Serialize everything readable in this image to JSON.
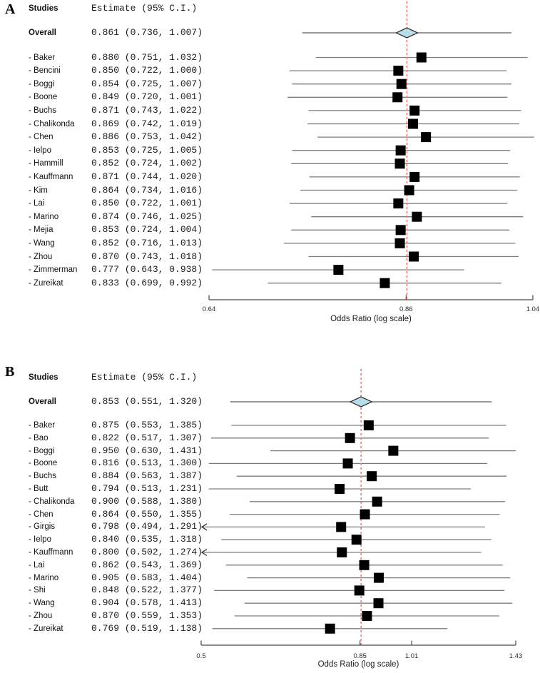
{
  "page": {
    "background": "#ffffff"
  },
  "chart_data": [
    {
      "type": "forest",
      "panel_label": "A",
      "columns": {
        "studies": "Studies",
        "estimate": "Estimate (95% C.I.)"
      },
      "xlabel": "Odds Ratio (log scale)",
      "scale": "log",
      "x_range": [
        0.64,
        1.04
      ],
      "x_tick_labels": [
        "0.64",
        "0.86",
        "1.04"
      ],
      "reference_line": 0.861,
      "overall": {
        "label": "Overall",
        "est": 0.861,
        "lo": 0.736,
        "hi": 1.007
      },
      "studies": [
        {
          "label": "- Baker",
          "est": 0.88,
          "lo": 0.751,
          "hi": 1.032
        },
        {
          "label": "- Bencini",
          "est": 0.85,
          "lo": 0.722,
          "hi": 1.0
        },
        {
          "label": "- Boggi",
          "est": 0.854,
          "lo": 0.725,
          "hi": 1.007
        },
        {
          "label": "- Boone",
          "est": 0.849,
          "lo": 0.72,
          "hi": 1.001
        },
        {
          "label": "- Buchs",
          "est": 0.871,
          "lo": 0.743,
          "hi": 1.022
        },
        {
          "label": "- Chalikonda",
          "est": 0.869,
          "lo": 0.742,
          "hi": 1.019
        },
        {
          "label": "- Chen",
          "est": 0.886,
          "lo": 0.753,
          "hi": 1.042
        },
        {
          "label": "- Ielpo",
          "est": 0.853,
          "lo": 0.725,
          "hi": 1.005
        },
        {
          "label": "- Hammill",
          "est": 0.852,
          "lo": 0.724,
          "hi": 1.002
        },
        {
          "label": "- Kauffmann",
          "est": 0.871,
          "lo": 0.744,
          "hi": 1.02
        },
        {
          "label": "- Kim",
          "est": 0.864,
          "lo": 0.734,
          "hi": 1.016
        },
        {
          "label": "- Lai",
          "est": 0.85,
          "lo": 0.722,
          "hi": 1.001
        },
        {
          "label": "- Marino",
          "est": 0.874,
          "lo": 0.746,
          "hi": 1.025
        },
        {
          "label": "- Mejia",
          "est": 0.853,
          "lo": 0.724,
          "hi": 1.004
        },
        {
          "label": "- Wang",
          "est": 0.852,
          "lo": 0.716,
          "hi": 1.013
        },
        {
          "label": "- Zhou",
          "est": 0.87,
          "lo": 0.743,
          "hi": 1.018
        },
        {
          "label": "- Zimmerman",
          "est": 0.777,
          "lo": 0.643,
          "hi": 0.938
        },
        {
          "label": "- Zureikat",
          "est": 0.833,
          "lo": 0.699,
          "hi": 0.992
        }
      ]
    },
    {
      "type": "forest",
      "panel_label": "B",
      "columns": {
        "studies": "Studies",
        "estimate": "Estimate (95% C.I.)"
      },
      "xlabel": "Odds Ratio (log scale)",
      "scale": "log",
      "x_range": [
        0.5,
        1.43
      ],
      "x_tick_labels": [
        "0.5",
        "0.85",
        "1.01",
        "1.43"
      ],
      "reference_line": 0.853,
      "overall": {
        "label": "Overall",
        "est": 0.853,
        "lo": 0.551,
        "hi": 1.32
      },
      "studies": [
        {
          "label": "- Baker",
          "est": 0.875,
          "lo": 0.553,
          "hi": 1.385
        },
        {
          "label": "- Bao",
          "est": 0.822,
          "lo": 0.517,
          "hi": 1.307
        },
        {
          "label": "- Boggi",
          "est": 0.95,
          "lo": 0.63,
          "hi": 1.431
        },
        {
          "label": "- Boone",
          "est": 0.816,
          "lo": 0.513,
          "hi": 1.3
        },
        {
          "label": "- Buchs",
          "est": 0.884,
          "lo": 0.563,
          "hi": 1.387
        },
        {
          "label": "- Butt",
          "est": 0.794,
          "lo": 0.513,
          "hi": 1.231
        },
        {
          "label": "- Chalikonda",
          "est": 0.9,
          "lo": 0.588,
          "hi": 1.38
        },
        {
          "label": "- Chen",
          "est": 0.864,
          "lo": 0.55,
          "hi": 1.355
        },
        {
          "label": "- Girgis",
          "est": 0.798,
          "lo": 0.494,
          "hi": 1.291,
          "arrow_left": true
        },
        {
          "label": "- Ielpo",
          "est": 0.84,
          "lo": 0.535,
          "hi": 1.318
        },
        {
          "label": "- Kauffmann",
          "est": 0.8,
          "lo": 0.502,
          "hi": 1.274,
          "arrow_left": true
        },
        {
          "label": "- Lai",
          "est": 0.862,
          "lo": 0.543,
          "hi": 1.369
        },
        {
          "label": "- Marino",
          "est": 0.905,
          "lo": 0.583,
          "hi": 1.404
        },
        {
          "label": "- Shi",
          "est": 0.848,
          "lo": 0.522,
          "hi": 1.377
        },
        {
          "label": "- Wang",
          "est": 0.904,
          "lo": 0.578,
          "hi": 1.413
        },
        {
          "label": "- Zhou",
          "est": 0.87,
          "lo": 0.559,
          "hi": 1.353
        },
        {
          "label": "- Zureikat",
          "est": 0.769,
          "lo": 0.519,
          "hi": 1.138
        }
      ]
    }
  ],
  "style": {
    "square_color": "#000000",
    "ci_line_color": "#7d7d7d",
    "overall_line_color": "#5a5a5a",
    "reference_line_color": "#f17c74",
    "diamond_fill": "#b8dce8",
    "diamond_stroke": "#1a1a1a",
    "axis_color": "#4a4a4a",
    "text_color": "#111111"
  }
}
